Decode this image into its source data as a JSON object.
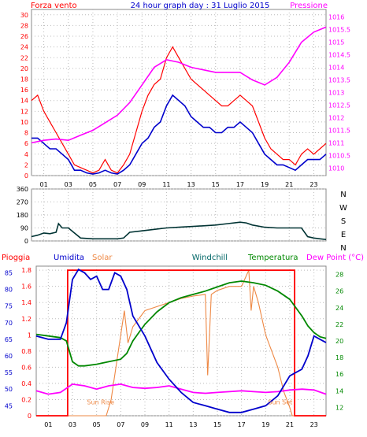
{
  "title": "24 hour graph day : 31 Luglio 2015",
  "hour_labels": [
    "01",
    "03",
    "05",
    "07",
    "09",
    "11",
    "13",
    "15",
    "17",
    "19",
    "21",
    "23"
  ],
  "chart_data": [
    {
      "type": "line",
      "id": "wind-pressure",
      "x_label": "hour",
      "xlim": [
        0,
        24
      ],
      "series": [
        {
          "name": "Forza vento",
          "color": "#ff0000",
          "axis": "left",
          "x": [
            0,
            0.5,
            1,
            1.5,
            2,
            2.5,
            3,
            3.5,
            4,
            4.5,
            5,
            5.5,
            6,
            6.5,
            7,
            7.5,
            8,
            8.5,
            9,
            9.5,
            10,
            10.5,
            11,
            11.5,
            12,
            12.5,
            13,
            13.5,
            14,
            14.5,
            15,
            15.5,
            16,
            16.5,
            17,
            17.5,
            18,
            18.5,
            19,
            19.5,
            20,
            20.5,
            21,
            21.5,
            22,
            22.5,
            23,
            23.5,
            24
          ],
          "y": [
            14,
            15,
            12,
            10,
            8,
            6,
            4,
            2,
            1.5,
            1,
            0.5,
            1,
            3,
            1,
            0.5,
            2,
            4,
            8,
            12,
            15,
            17,
            18,
            22,
            24,
            22,
            20,
            18,
            17,
            16,
            15,
            14,
            13,
            13,
            14,
            15,
            14,
            13,
            10,
            7,
            5,
            4,
            3,
            3,
            2,
            4,
            5,
            4,
            5,
            6
          ]
        },
        {
          "name": "",
          "color": "#0000cc",
          "axis": "left",
          "x": [
            0,
            0.5,
            1,
            1.5,
            2,
            2.5,
            3,
            3.5,
            4,
            4.5,
            5,
            5.5,
            6,
            6.5,
            7,
            7.5,
            8,
            8.5,
            9,
            9.5,
            10,
            10.5,
            11,
            11.5,
            12,
            12.5,
            13,
            13.5,
            14,
            14.5,
            15,
            15.5,
            16,
            16.5,
            17,
            17.5,
            18,
            18.5,
            19,
            19.5,
            20,
            20.5,
            21,
            21.5,
            22,
            22.5,
            23,
            23.5,
            24
          ],
          "y": [
            7,
            7,
            6,
            5,
            5,
            4,
            3,
            1,
            1,
            0.5,
            0.3,
            0.5,
            1,
            0.5,
            0.3,
            1,
            2,
            4,
            6,
            7,
            9,
            10,
            13,
            15,
            14,
            13,
            11,
            10,
            9,
            9,
            8,
            8,
            9,
            9,
            10,
            9,
            8,
            6,
            4,
            3,
            2,
            2,
            1.5,
            1,
            2,
            3,
            3,
            3,
            4
          ]
        },
        {
          "name": "Pressione",
          "color": "#ff00ff",
          "axis": "right",
          "x": [
            0,
            1,
            2,
            3,
            4,
            5,
            6,
            7,
            8,
            9,
            10,
            11,
            12,
            13,
            14,
            15,
            16,
            17,
            18,
            19,
            20,
            21,
            22,
            23,
            24
          ],
          "y": [
            1011,
            1011.1,
            1011.15,
            1011.1,
            1011.3,
            1011.5,
            1011.8,
            1012.1,
            1012.6,
            1013.3,
            1014,
            1014.3,
            1014.2,
            1014,
            1013.9,
            1013.8,
            1013.8,
            1013.8,
            1013.5,
            1013.3,
            1013.6,
            1014.2,
            1015,
            1015.4,
            1015.6
          ]
        }
      ],
      "y_left": {
        "label": "Forza vento",
        "ticks": [
          0,
          2,
          4,
          6,
          8,
          10,
          12,
          14,
          16,
          18,
          20,
          22,
          24,
          26,
          28,
          30
        ],
        "lim": [
          0,
          31
        ]
      },
      "y_right": {
        "label": "Pressione",
        "ticks": [
          1010,
          1010.5,
          1011,
          1011.5,
          1012,
          1012.5,
          1013,
          1013.5,
          1014,
          1014.5,
          1015,
          1015.5,
          1016
        ],
        "tick_labels": [
          "1010",
          "1010.5",
          "1011",
          "1011.5",
          "1012",
          "1012.5",
          "1013",
          "1013.5",
          "1014",
          "1014.5",
          "1015",
          "1015.5",
          "1016"
        ],
        "lim": [
          1009.7,
          1016.3
        ]
      }
    },
    {
      "type": "line",
      "id": "wind-direction",
      "xlim": [
        0,
        24
      ],
      "series": [
        {
          "name": "",
          "color": "#003333",
          "x": [
            0,
            0.5,
            1,
            1.5,
            2,
            2.2,
            2.5,
            3,
            3.5,
            4,
            5,
            6,
            7,
            7.5,
            8,
            9,
            10,
            11,
            12,
            13,
            14,
            15,
            16,
            17,
            17.5,
            18,
            19,
            20,
            21,
            22,
            22.5,
            23,
            23.5,
            24
          ],
          "y": [
            30,
            40,
            55,
            50,
            60,
            120,
            90,
            90,
            55,
            20,
            15,
            15,
            15,
            20,
            60,
            70,
            80,
            90,
            95,
            100,
            105,
            110,
            120,
            130,
            125,
            110,
            95,
            90,
            90,
            90,
            30,
            20,
            15,
            10
          ]
        }
      ],
      "y_left": {
        "ticks": [
          0,
          90,
          180,
          270,
          360
        ],
        "lim": [
          0,
          360
        ]
      },
      "right_labels": [
        "N",
        "W",
        "S",
        "E",
        "N"
      ]
    },
    {
      "type": "line",
      "id": "rain-humidity-temperature",
      "xlim": [
        0,
        24
      ],
      "series": [
        {
          "name": "Pioggia",
          "color": "#ff0000",
          "axis": "left-pioggia",
          "x": [
            0,
            2.6,
            2.6,
            21.4,
            21.4,
            24
          ],
          "y": [
            0,
            0,
            1.8,
            1.8,
            0,
            0
          ]
        },
        {
          "name": "Umidita",
          "color": "#0000cc",
          "axis": "left-umidita",
          "x": [
            0,
            1,
            2,
            2.5,
            3,
            3.5,
            4,
            4.5,
            5,
            5.5,
            6,
            6.5,
            7,
            7.5,
            8,
            9,
            10,
            11,
            12,
            13,
            14,
            15,
            16,
            17,
            18,
            19,
            20,
            21,
            21.5,
            22,
            22.5,
            23,
            23.5,
            24
          ],
          "y": [
            66,
            65,
            65,
            70,
            83,
            86,
            85,
            83,
            84,
            80,
            80,
            85,
            84,
            80,
            72,
            66,
            58,
            53,
            49,
            46,
            45,
            44,
            43,
            43,
            44,
            45,
            48,
            54,
            55,
            56,
            60,
            66,
            65,
            64
          ]
        },
        {
          "name": "Solar",
          "color": "#ee8844",
          "axis": "left-pioggia",
          "x": [
            0,
            5.8,
            6.2,
            6.6,
            7,
            7.3,
            7.6,
            8,
            9,
            10,
            11,
            12,
            13,
            14,
            14.2,
            14.5,
            15,
            16,
            17,
            17.6,
            17.8,
            18,
            18.4,
            18.7,
            19,
            19.5,
            20,
            20.5,
            21,
            21.2,
            24
          ],
          "y": [
            0,
            0,
            0.2,
            0.6,
            1.0,
            1.3,
            0.9,
            1.1,
            1.3,
            1.35,
            1.4,
            1.45,
            1.48,
            1.5,
            0.5,
            1.5,
            1.55,
            1.6,
            1.6,
            1.8,
            1.3,
            1.6,
            1.4,
            1.2,
            1.0,
            0.8,
            0.6,
            0.3,
            0.1,
            0,
            0
          ]
        },
        {
          "name": "Windchill",
          "color": "#006666",
          "axis": "right-temp",
          "x": [
            0,
            24
          ],
          "y": [
            null,
            null
          ]
        },
        {
          "name": "Temperatura",
          "color": "#008800",
          "axis": "right-temp",
          "x": [
            0,
            1,
            2,
            2.5,
            3,
            3.5,
            4,
            5,
            6,
            7,
            7.5,
            8,
            8.5,
            9,
            10,
            11,
            12,
            13,
            14,
            15,
            16,
            17,
            18,
            19,
            20,
            21,
            22,
            22.5,
            23,
            23.5,
            24
          ],
          "y": [
            20.8,
            20.6,
            20.4,
            20,
            17.5,
            17,
            17,
            17.2,
            17.5,
            17.8,
            18.5,
            20,
            21,
            22,
            23.5,
            24.6,
            25.2,
            25.6,
            26,
            26.5,
            27,
            27.2,
            27,
            26.7,
            26,
            25,
            23,
            21.8,
            21,
            20.5,
            20.3
          ]
        },
        {
          "name": "Dew Point (°C)",
          "color": "#ff00ff",
          "axis": "right-temp",
          "x": [
            0,
            1,
            2,
            3,
            4,
            5,
            6,
            7,
            8,
            9,
            10,
            11,
            12,
            13,
            14,
            15,
            16,
            17,
            18,
            19,
            20,
            21,
            22,
            23,
            24
          ],
          "y": [
            14,
            13.6,
            13.8,
            14.8,
            14.6,
            14.2,
            14.6,
            14.8,
            14.4,
            14.3,
            14.4,
            14.6,
            14.2,
            13.8,
            13.7,
            13.8,
            13.9,
            14,
            13.9,
            13.8,
            13.9,
            14.1,
            14.2,
            14.1,
            13.6
          ]
        }
      ],
      "y_left_pioggia": {
        "ticks": [
          0,
          0.2,
          0.4,
          0.6,
          0.8,
          1,
          1.2,
          1.4,
          1.6,
          1.8
        ],
        "tick_labels": [
          "0",
          "0.2",
          "0.4",
          "0.6",
          "0.8",
          "1",
          "1.2",
          "1.4",
          "1.6",
          "1.8"
        ],
        "lim": [
          0,
          1.85
        ]
      },
      "y_left_umidita": {
        "ticks": [
          45,
          50,
          55,
          60,
          65,
          70,
          75,
          80,
          85
        ],
        "lim": [
          42,
          87
        ]
      },
      "y_right_temp": {
        "ticks": [
          12,
          14,
          16,
          18,
          20,
          22,
          24,
          26,
          28
        ],
        "lim": [
          11,
          29
        ]
      },
      "annotations": [
        {
          "text": "Sun Rise",
          "x": 4.2,
          "y": 0.17
        },
        {
          "text": "Sun Set",
          "x": 19.2,
          "y": 0.17
        }
      ]
    }
  ]
}
